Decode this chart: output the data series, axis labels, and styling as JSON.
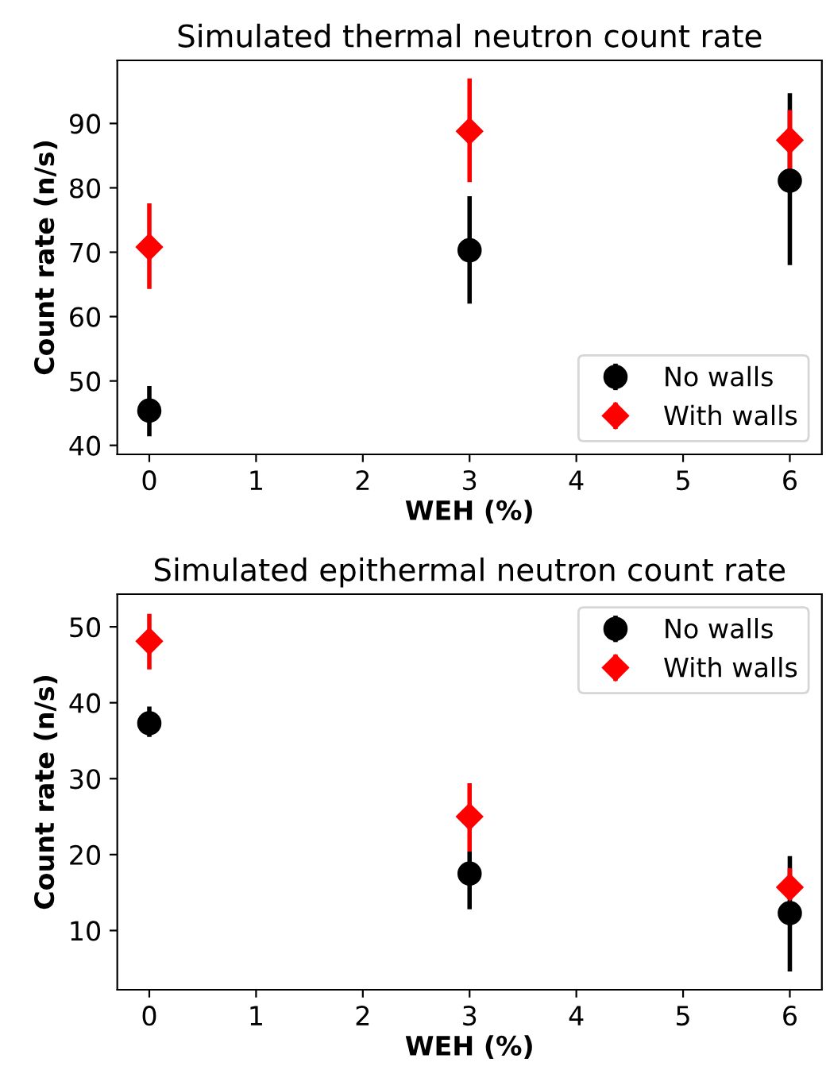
{
  "chart_data": [
    {
      "type": "scatter",
      "title": "Simulated thermal neutron count rate",
      "xlabel": "WEH (%)",
      "ylabel": "Count rate (n/s)",
      "xlim": [
        -0.3,
        6.3
      ],
      "ylim": [
        38.6,
        99.8
      ],
      "xticks": [
        0,
        1,
        2,
        3,
        4,
        5,
        6
      ],
      "yticks": [
        40,
        50,
        60,
        70,
        80,
        90
      ],
      "legend": "lower right",
      "grid": false,
      "series": [
        {
          "name": "No walls",
          "color": "#000000",
          "marker": "circle",
          "x": [
            0,
            3,
            6
          ],
          "values": [
            45.4,
            70.3,
            81.1
          ],
          "errors": [
            [
              41.4,
              49.2
            ],
            [
              62.0,
              78.7
            ],
            [
              68.0,
              94.7
            ]
          ]
        },
        {
          "name": "With walls",
          "color": "#ff0000",
          "marker": "diamond",
          "x": [
            0,
            3,
            6
          ],
          "values": [
            70.8,
            88.8,
            87.4
          ],
          "errors": [
            [
              64.3,
              77.6
            ],
            [
              80.9,
              97.0
            ],
            [
              82.4,
              92.1
            ]
          ]
        }
      ]
    },
    {
      "type": "scatter",
      "title": "Simulated epithermal neutron count rate",
      "xlabel": "WEH (%)",
      "ylabel": "Count rate (n/s)",
      "xlim": [
        -0.3,
        6.3
      ],
      "ylim": [
        2.2,
        54.3
      ],
      "xticks": [
        0,
        1,
        2,
        3,
        4,
        5,
        6
      ],
      "yticks": [
        10,
        20,
        30,
        40,
        50
      ],
      "legend": "upper right",
      "grid": false,
      "series": [
        {
          "name": "No walls",
          "color": "#000000",
          "marker": "circle",
          "x": [
            0,
            3,
            6
          ],
          "values": [
            37.3,
            17.5,
            12.3
          ],
          "errors": [
            [
              35.5,
              39.5
            ],
            [
              12.8,
              20.4
            ],
            [
              4.6,
              19.8
            ]
          ]
        },
        {
          "name": "With walls",
          "color": "#ff0000",
          "marker": "diamond",
          "x": [
            0,
            3,
            6
          ],
          "values": [
            48.1,
            25.0,
            15.7
          ],
          "errors": [
            [
              44.4,
              51.7
            ],
            [
              20.4,
              29.4
            ],
            [
              14.1,
              18.2
            ]
          ]
        }
      ]
    }
  ]
}
